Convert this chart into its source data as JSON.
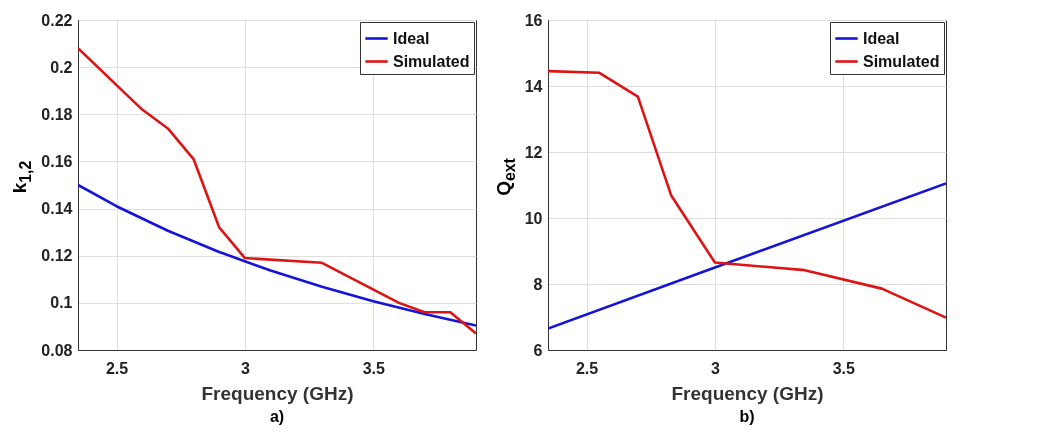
{
  "chart_data": [
    {
      "type": "line",
      "title": "a)",
      "xlabel": "Frequency (GHz)",
      "ylabel": "k$_{1,2}$",
      "xlim": [
        2.35,
        3.9
      ],
      "xticks": [
        2.5,
        3,
        3.5
      ],
      "ylim": [
        0.08,
        0.22
      ],
      "yticks": [
        0.08,
        0.1,
        0.12,
        0.14,
        0.16,
        0.18,
        0.2,
        0.22
      ],
      "grid": true,
      "legend": "top right",
      "series": [
        {
          "name": "Ideal",
          "color": "#1414d8",
          "x": [
            2.35,
            2.5,
            2.7,
            2.9,
            3.1,
            3.3,
            3.5,
            3.7,
            3.9
          ],
          "values": [
            0.15,
            0.141,
            0.1306,
            0.1216,
            0.1137,
            0.1068,
            0.1007,
            0.0953,
            0.0904
          ]
        },
        {
          "name": "Simulated",
          "color": "#dc1414",
          "x": [
            2.35,
            2.6,
            2.7,
            2.8,
            2.9,
            3.0,
            3.3,
            3.6,
            3.7,
            3.8,
            3.9
          ],
          "values": [
            0.208,
            0.182,
            0.174,
            0.161,
            0.132,
            0.119,
            0.117,
            0.1,
            0.096,
            0.096,
            0.087
          ]
        }
      ]
    },
    {
      "type": "line",
      "title": "b)",
      "xlabel": "Frequency (GHz)",
      "ylabel": "Q$_{ext}$",
      "xlim": [
        2.35,
        3.9
      ],
      "xticks": [
        2.5,
        3,
        3.5
      ],
      "ylim": [
        6,
        16
      ],
      "yticks": [
        6,
        8,
        10,
        12,
        14,
        16
      ],
      "grid": true,
      "legend": "top right",
      "series": [
        {
          "name": "Ideal",
          "color": "#1414d8",
          "x": [
            2.35,
            3.0,
            3.9
          ],
          "values": [
            6.65,
            8.5,
            11.05
          ]
        },
        {
          "name": "Simulated",
          "color": "#dc1414",
          "x": [
            2.35,
            2.55,
            2.7,
            2.83,
            3.0,
            3.35,
            3.65,
            3.9
          ],
          "values": [
            14.45,
            14.4,
            13.68,
            10.68,
            8.65,
            8.42,
            7.86,
            6.98
          ]
        }
      ]
    }
  ]
}
